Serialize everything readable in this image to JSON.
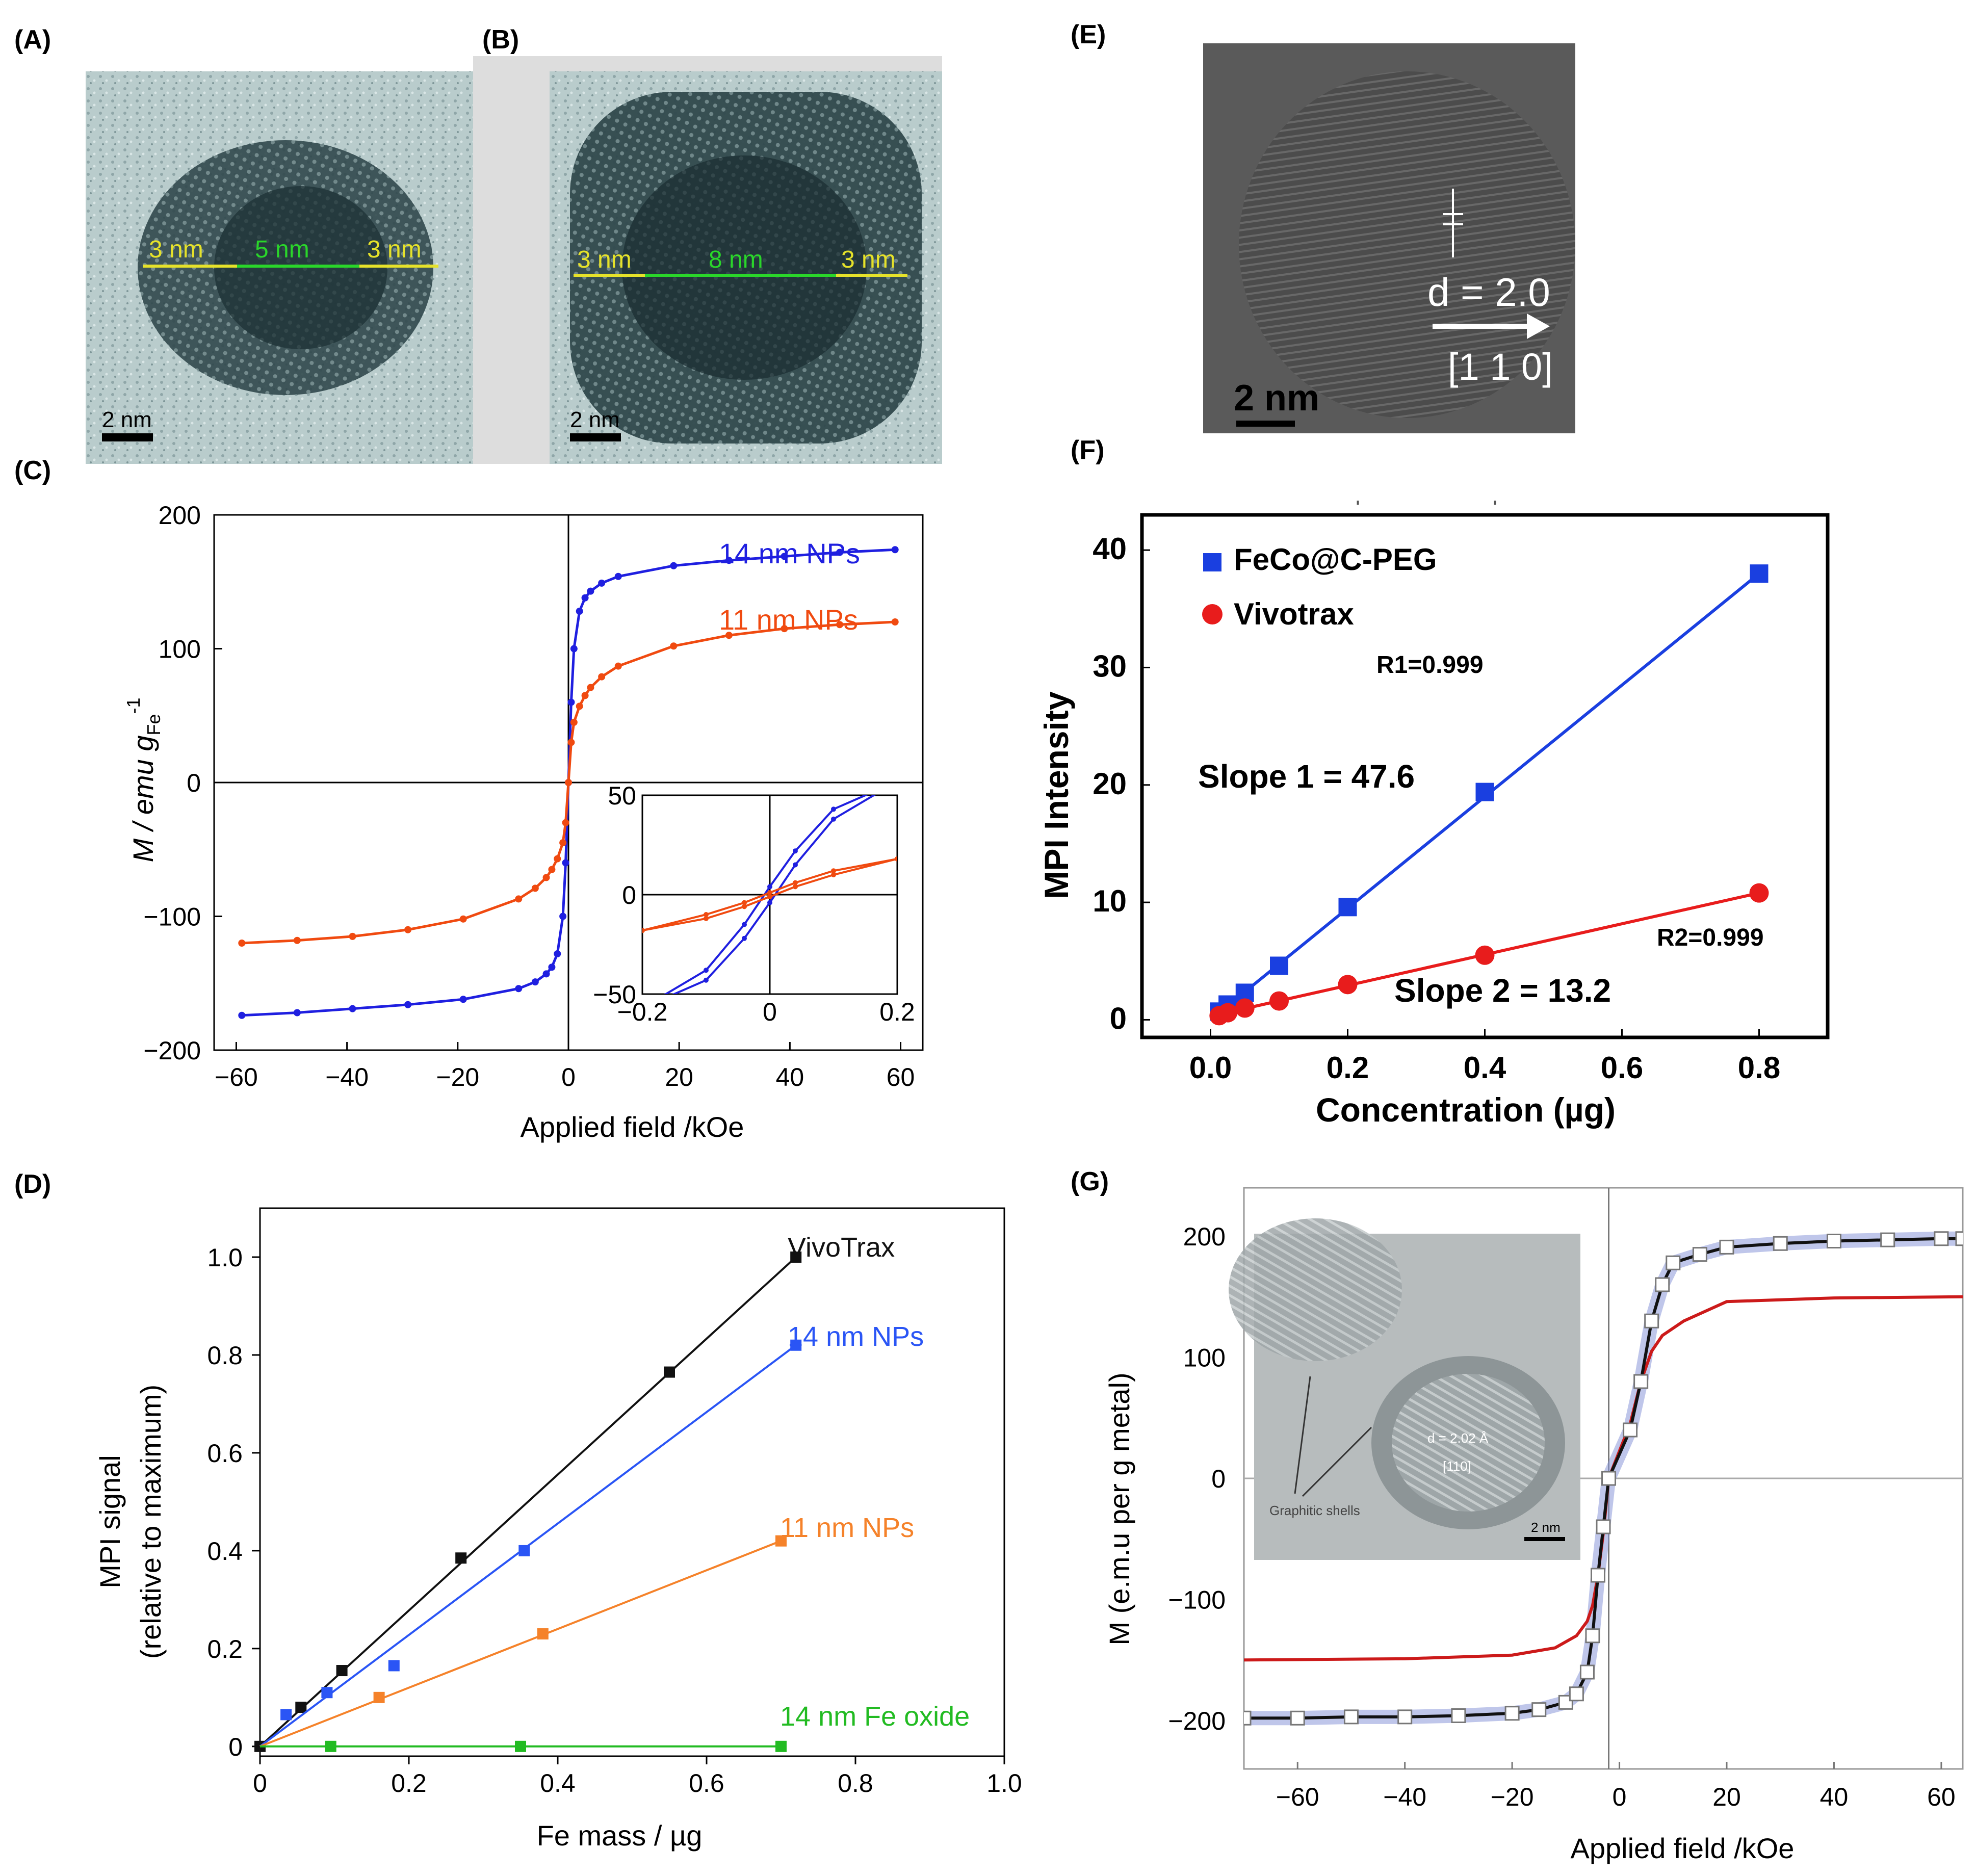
{
  "panels": {
    "A": {
      "label": "(A)",
      "scale_bar": "2 nm",
      "annotations": [
        "3 nm",
        "5 nm",
        "3 nm"
      ]
    },
    "B": {
      "label": "(B)",
      "scale_bar": "2 nm",
      "annotations": [
        "3 nm",
        "8 nm",
        "3 nm"
      ]
    },
    "E": {
      "label": "(E)",
      "scale_bar": "2 nm",
      "d_spacing": "d = 2.0",
      "direction": "[1 1 0]"
    },
    "C": {
      "label": "(C)",
      "xlabel": "Applied field /kOe",
      "ylabel_main": "M / emu g",
      "ylabel_sub": "Fe",
      "ylabel_sup": "-1",
      "series_labels": [
        "14 nm NPs",
        "11 nm NPs"
      ]
    },
    "D": {
      "label": "(D)",
      "xlabel": "Fe mass / µg",
      "ylabel_1": "MPI signal",
      "ylabel_2": "(relative to maximum)",
      "series_labels": [
        "VivoTrax",
        "14 nm NPs",
        "11 nm NPs",
        "14 nm Fe oxide"
      ]
    },
    "F": {
      "label": "(F)",
      "xlabel": "Concentration (µg)",
      "ylabel": "MPI Intensity",
      "legend": [
        "FeCo@C-PEG",
        "Vivotrax"
      ],
      "annotations": {
        "r1": "R1=0.999",
        "slope1": "Slope 1 = 47.6",
        "r2": "R2=0.999",
        "slope2": "Slope 2 = 13.2"
      }
    },
    "G": {
      "label": "(G)",
      "xlabel": "Applied field /kOe",
      "ylabel": "M (e.m.u per g metal)",
      "inset_text": "Graphitic shells",
      "inset_scale": "2 nm",
      "inset_d": "d = 2.02 Å",
      "inset_dir": "[110]"
    }
  },
  "chart_data": [
    {
      "panel": "C",
      "type": "line",
      "xlim": [
        -64,
        64
      ],
      "ylim": [
        -200,
        200
      ],
      "xticks": [
        -60,
        -40,
        -20,
        0,
        20,
        40,
        60
      ],
      "yticks": [
        -200,
        -100,
        0,
        100,
        200
      ],
      "series": [
        {
          "name": "14 nm NPs",
          "color": "#1f1fe0",
          "x": [
            -59,
            -49,
            -39,
            -29,
            -19,
            -9,
            -6,
            -4,
            -3,
            -2,
            -1,
            -0.5,
            0,
            0.5,
            1,
            2,
            3,
            4,
            6,
            9,
            19,
            29,
            39,
            49,
            59
          ],
          "y": [
            -174,
            -172,
            -169,
            -166,
            -162,
            -154,
            -149,
            -143,
            -138,
            -128,
            -100,
            -60,
            0,
            60,
            100,
            128,
            138,
            143,
            149,
            154,
            162,
            166,
            169,
            172,
            174
          ]
        },
        {
          "name": "11 nm NPs",
          "color": "#f04a10",
          "x": [
            -59,
            -49,
            -39,
            -29,
            -19,
            -9,
            -6,
            -4,
            -3,
            -2,
            -1,
            -0.5,
            0,
            0.5,
            1,
            2,
            3,
            4,
            6,
            9,
            19,
            29,
            39,
            49,
            59
          ],
          "y": [
            -120,
            -118,
            -115,
            -110,
            -102,
            -87,
            -79,
            -71,
            -65,
            -57,
            -45,
            -30,
            0,
            30,
            45,
            57,
            65,
            71,
            79,
            87,
            102,
            110,
            115,
            118,
            120
          ]
        }
      ],
      "inset": {
        "xlim": [
          -0.2,
          0.2
        ],
        "ylim": [
          -50,
          50
        ],
        "xticks": [
          -0.2,
          0,
          0.2
        ],
        "yticks": [
          -50,
          0,
          50
        ],
        "series": [
          {
            "name": "14 nm NPs",
            "color": "#1f1fe0",
            "branches": [
              {
                "x": [
                  -0.2,
                  -0.1,
                  -0.04,
                  0,
                  0.04,
                  0.1,
                  0.2
                ],
                "y": [
                  -57,
                  -38,
                  -15,
                  4,
                  22,
                  43,
                  57
                ]
              },
              {
                "x": [
                  -0.2,
                  -0.1,
                  -0.04,
                  0,
                  0.04,
                  0.1,
                  0.2
                ],
                "y": [
                  -57,
                  -43,
                  -22,
                  -4,
                  15,
                  38,
                  57
                ]
              }
            ]
          },
          {
            "name": "11 nm NPs",
            "color": "#f04a10",
            "branches": [
              {
                "x": [
                  -0.2,
                  -0.1,
                  -0.04,
                  0,
                  0.04,
                  0.1,
                  0.2
                ],
                "y": [
                  -18,
                  -10,
                  -4,
                  1,
                  6,
                  12,
                  18
                ]
              },
              {
                "x": [
                  -0.2,
                  -0.1,
                  -0.04,
                  0,
                  0.04,
                  0.1,
                  0.2
                ],
                "y": [
                  -18,
                  -12,
                  -6,
                  -1,
                  4,
                  10,
                  18
                ]
              }
            ]
          }
        ]
      }
    },
    {
      "panel": "D",
      "type": "line",
      "xlim": [
        0,
        1.0
      ],
      "ylim": [
        -0.02,
        1.1
      ],
      "xticks": [
        0,
        0.2,
        0.4,
        0.6,
        0.8,
        1.0
      ],
      "yticks": [
        0,
        0.2,
        0.4,
        0.6,
        0.8,
        1.0
      ],
      "series": [
        {
          "name": "VivoTrax",
          "color": "#111111",
          "x": [
            0,
            0.055,
            0.11,
            0.27,
            0.55,
            0.72
          ],
          "y": [
            0,
            0.08,
            0.155,
            0.385,
            0.765,
            1.0
          ],
          "fit": [
            [
              0,
              0
            ],
            [
              0.72,
              1.0
            ]
          ]
        },
        {
          "name": "14 nm NPs",
          "color": "#2a55f5",
          "x": [
            0.035,
            0.09,
            0.18,
            0.355,
            0.72
          ],
          "y": [
            0.065,
            0.11,
            0.165,
            0.4,
            0.82
          ],
          "fit": [
            [
              0,
              0
            ],
            [
              0.72,
              0.82
            ]
          ]
        },
        {
          "name": "11 nm NPs",
          "color": "#f5822a",
          "x": [
            0.16,
            0.38,
            0.7
          ],
          "y": [
            0.1,
            0.23,
            0.42
          ],
          "fit": [
            [
              0,
              0
            ],
            [
              0.7,
              0.42
            ]
          ]
        },
        {
          "name": "14 nm Fe oxide",
          "color": "#22bb22",
          "x": [
            0.095,
            0.35,
            0.7
          ],
          "y": [
            0.0,
            0.0,
            0.0
          ],
          "fit": [
            [
              0,
              0
            ],
            [
              0.7,
              0
            ]
          ]
        }
      ]
    },
    {
      "panel": "F",
      "type": "scatter",
      "xlim": [
        -0.1,
        0.9
      ],
      "ylim": [
        -1.5,
        43
      ],
      "xticks": [
        0.0,
        0.2,
        0.4,
        0.6,
        0.8
      ],
      "yticks": [
        0,
        10,
        20,
        30,
        40
      ],
      "series": [
        {
          "name": "FeCo@C-PEG",
          "color": "#1a3fe0",
          "marker": "square",
          "x": [
            0.0125,
            0.025,
            0.05,
            0.1,
            0.2,
            0.4,
            0.8
          ],
          "y": [
            0.7,
            1.3,
            2.3,
            4.6,
            9.6,
            19.4,
            38.0
          ],
          "fit": [
            [
              0.0,
              0.0
            ],
            [
              0.8,
              38.0
            ]
          ]
        },
        {
          "name": "Vivotrax",
          "color": "#e81c1c",
          "marker": "circle",
          "x": [
            0.0125,
            0.025,
            0.05,
            0.1,
            0.2,
            0.4,
            0.8
          ],
          "y": [
            0.35,
            0.6,
            1.0,
            1.6,
            3.0,
            5.5,
            10.8
          ],
          "fit": [
            [
              0.0,
              0.3
            ],
            [
              0.8,
              10.8
            ]
          ]
        }
      ]
    },
    {
      "panel": "G",
      "type": "line",
      "xlim": [
        -70,
        64
      ],
      "ylim": [
        -240,
        240
      ],
      "xticks": [
        -60,
        -40,
        -20,
        0,
        20,
        40,
        60
      ],
      "yticks": [
        -200,
        -100,
        0,
        100,
        200
      ],
      "series": [
        {
          "name": "",
          "color": "#111111",
          "marker": "open-square",
          "x": [
            -70,
            -60,
            -50,
            -40,
            -30,
            -20,
            -15,
            -10,
            -8,
            -6,
            -5,
            -4,
            -3,
            -2,
            2,
            4,
            6,
            8,
            10,
            15,
            20,
            30,
            40,
            50,
            60,
            64
          ],
          "y": [
            -198,
            -198,
            -197,
            -197,
            -196,
            -194,
            -191,
            -185,
            -178,
            -160,
            -130,
            -80,
            -40,
            0,
            40,
            80,
            130,
            160,
            178,
            185,
            191,
            194,
            196,
            197,
            198,
            198
          ]
        },
        {
          "name": "",
          "color": "#cc1a1a",
          "marker": "none",
          "x": [
            -70,
            -40,
            -20,
            -12,
            -8,
            -6,
            -5,
            -4,
            -3,
            -2,
            2,
            4,
            6,
            8,
            12,
            20,
            40,
            64
          ],
          "y": [
            -150,
            -149,
            -146,
            -140,
            -130,
            -118,
            -105,
            -80,
            -45,
            0,
            45,
            80,
            105,
            118,
            130,
            146,
            149,
            150
          ]
        }
      ]
    }
  ]
}
